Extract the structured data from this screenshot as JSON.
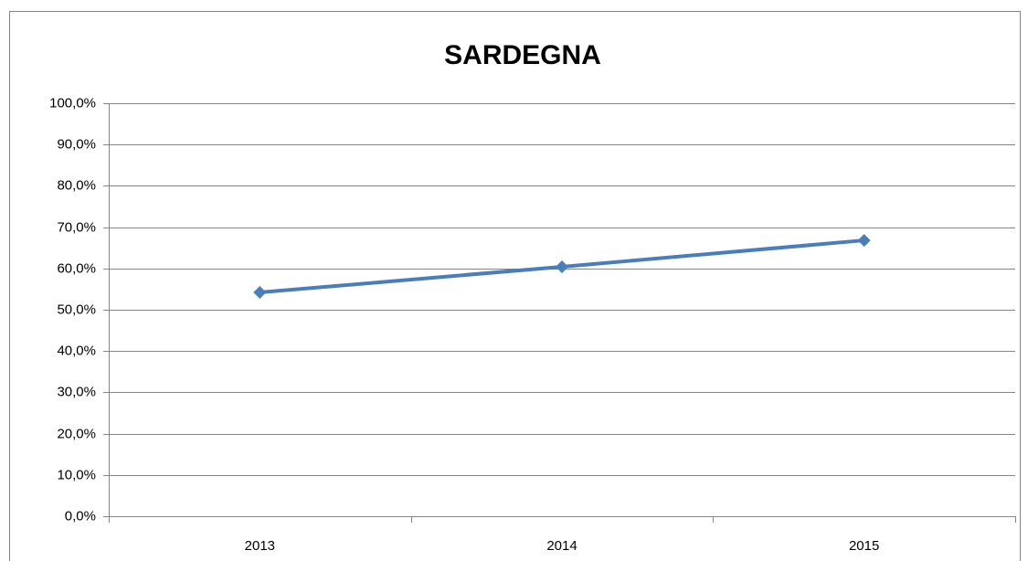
{
  "chart_data": {
    "type": "line",
    "title": "SARDEGNA",
    "categories": [
      "2013",
      "2014",
      "2015"
    ],
    "values": [
      54.2,
      60.4,
      66.8
    ],
    "color": "#4a7ebb",
    "ylim": [
      0,
      100
    ],
    "yticks": [
      {
        "value": 0,
        "label": "0,0%"
      },
      {
        "value": 10,
        "label": "10,0%"
      },
      {
        "value": 20,
        "label": "20,0%"
      },
      {
        "value": 30,
        "label": "30,0%"
      },
      {
        "value": 40,
        "label": "40,0%"
      },
      {
        "value": 50,
        "label": "50,0%"
      },
      {
        "value": 60,
        "label": "60,0%"
      },
      {
        "value": 70,
        "label": "70,0%"
      },
      {
        "value": 80,
        "label": "80,0%"
      },
      {
        "value": 90,
        "label": "90,0%"
      },
      {
        "value": 100,
        "label": "100,0%"
      }
    ],
    "grid": true
  }
}
